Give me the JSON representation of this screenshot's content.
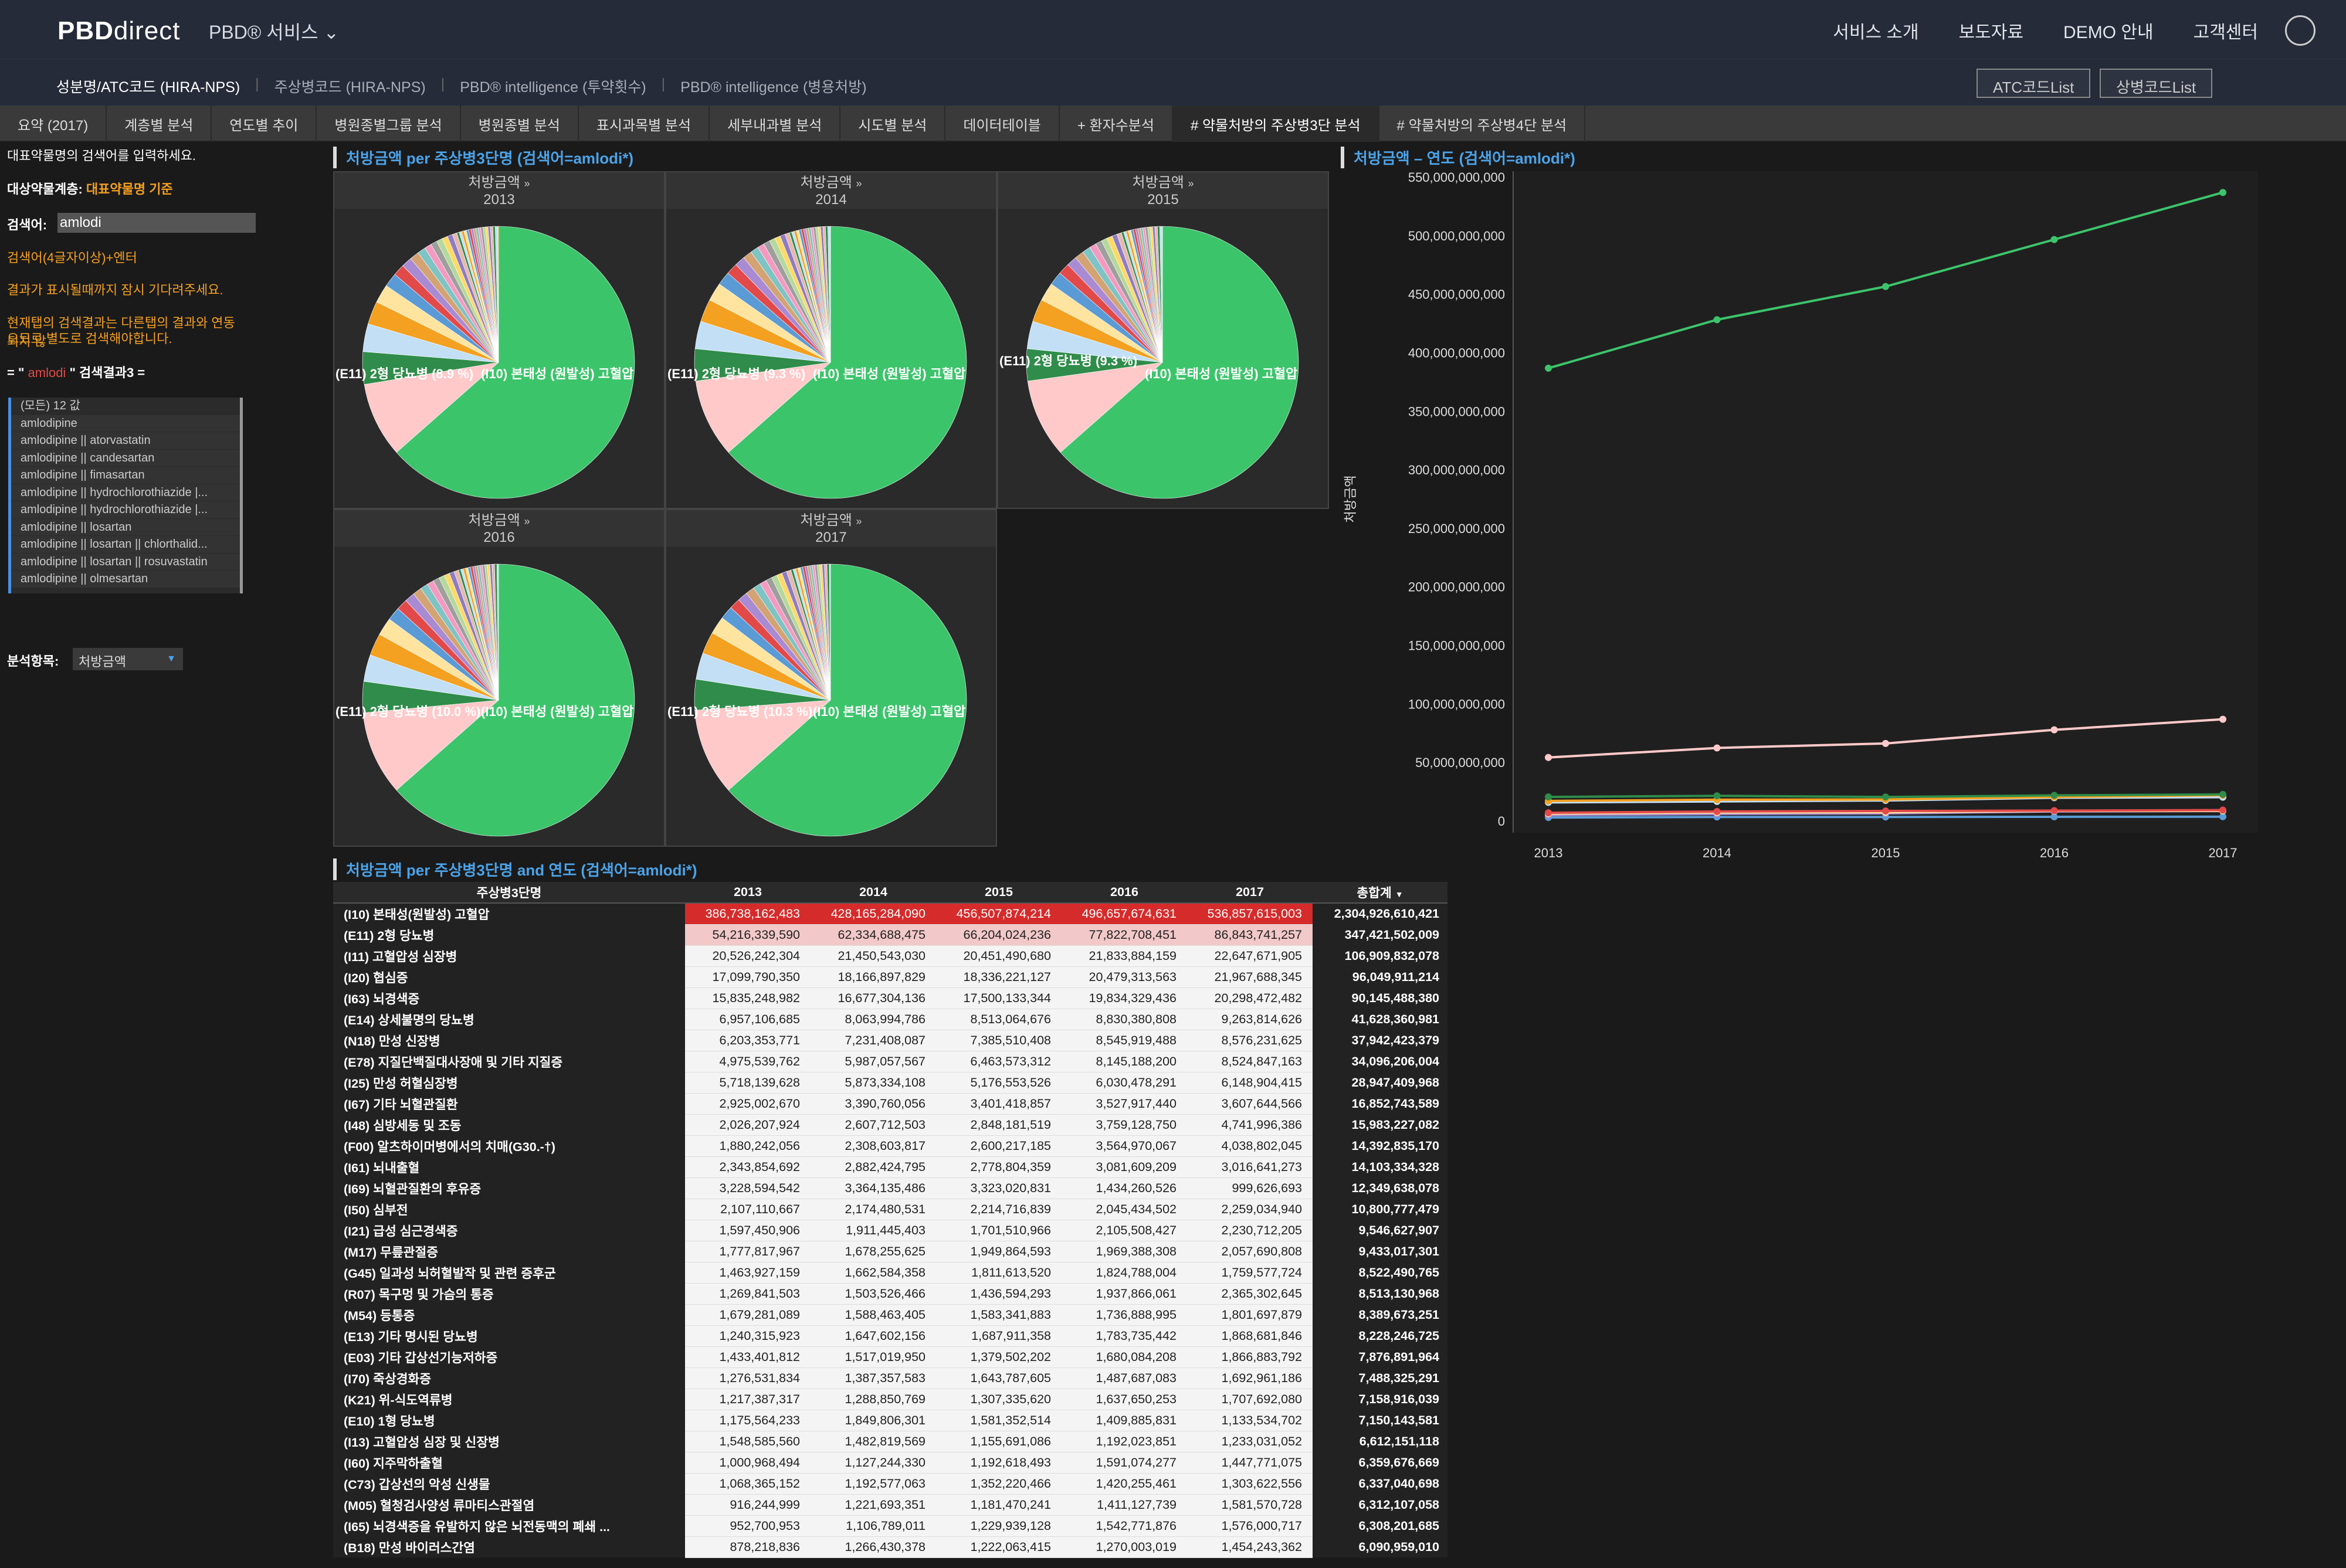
{
  "header": {
    "logo_main": "PBD",
    "logo_sub": "direct",
    "service_menu": "PBD® 서비스",
    "nav": [
      "서비스 소개",
      "보도자료",
      "DEMO 안내",
      "고객센터"
    ]
  },
  "subnav": {
    "items": [
      "성분명/ATC코드 (HIRA-NPS)",
      "주상병코드 (HIRA-NPS)",
      "PBD® intelligence (투약횟수)",
      "PBD® intelligence (병용처방)"
    ],
    "atc_button": "ATC코드List",
    "disease_button": "상병코드List"
  },
  "tabs": [
    "요약 (2017)",
    "계층별 분석",
    "연도별 추이",
    "병원종별그룹 분석",
    "병원종별 분석",
    "표시과목별 분석",
    "세부내과별 분석",
    "시도별 분석",
    "데이터테이블",
    "+ 환자수분석",
    "# 약물처방의 주상병3단 분석",
    "# 약물처방의 주상병4단 분석"
  ],
  "left": {
    "prompt": "대표약물명의 검색어를 입력하세요.",
    "layer_label": "대상약물계층:",
    "layer_value": "대표약물명 기준",
    "search_label": "검색어:",
    "search_value": "amlodi",
    "hint1": "검색어(4글자이상)+엔터",
    "hint2": "결과가 표시될때까지 잠시 기다려주세요.",
    "hint3a": "현재탭의 검색결과는 다른탭의 결과와 연동되지 않",
    "hint3b": "으므로 별도로 검색해야합니다.",
    "result_prefix": "= \"",
    "result_term": " amlodi ",
    "result_suffix": "\" 검색결과3 =",
    "list_all": "(모든) 12 값",
    "list": [
      "amlodipine",
      "amlodipine || atorvastatin",
      "amlodipine || candesartan",
      "amlodipine || fimasartan",
      "amlodipine || hydrochlorothiazide |...",
      "amlodipine || hydrochlorothiazide |...",
      "amlodipine || losartan",
      "amlodipine || losartan || chlorthalid...",
      "amlodipine || losartan || rosuvastatin",
      "amlodipine || olmesartan"
    ],
    "analysis_label": "분석항목:",
    "analysis_value": "처방금액"
  },
  "pies": {
    "title": "처방금액 per 주상병3단명 (검색어=amlodi*)",
    "head_label": "처방금액",
    "label_e11": "(E11) 2형 당뇨병",
    "label_i10": "(I10) 본태성 (원발성) 고혈압",
    "years": [
      "2013",
      "2014",
      "2015",
      "2016",
      "2017"
    ],
    "pct": [
      "(8.9 %)",
      "(9.3 %)",
      "(9.3 %)",
      "(10.0 %)",
      "(10.3 %)"
    ],
    "colors": {
      "main": "#3cc46b",
      "e11": "#ffc9c9",
      "others": [
        "#2f8c4a",
        "#c2dff5",
        "#f4a020",
        "#ffe4a0",
        "#5b9bd5",
        "#e24a4a",
        "#a98bd4",
        "#d4a373",
        "#7fc4c4",
        "#f49ac1",
        "#9e9e9e",
        "#b5d99c",
        "#ffd966",
        "#8e7cc3",
        "#e6b8af"
      ]
    }
  },
  "line_chart_title": "처방금액 – 연도 (검색어=amlodi*)",
  "table": {
    "title": "처방금액 per 주상병3단명 and 연도 (검색어=amlodi*)",
    "header_label": "주상병3단명",
    "header_total": "총합계",
    "years": [
      "2013",
      "2014",
      "2015",
      "2016",
      "2017"
    ],
    "rows": [
      {
        "name": "(I10) 본태성(원발성) 고혈압",
        "v": [
          "386,738,162,483",
          "428,165,284,090",
          "456,507,874,214",
          "496,657,674,631",
          "536,857,615,003"
        ],
        "t": "2,304,926,610,421"
      },
      {
        "name": "(E11) 2형 당뇨병",
        "v": [
          "54,216,339,590",
          "62,334,688,475",
          "66,204,024,236",
          "77,822,708,451",
          "86,843,741,257"
        ],
        "t": "347,421,502,009"
      },
      {
        "name": "(I11) 고혈압성 심장병",
        "v": [
          "20,526,242,304",
          "21,450,543,030",
          "20,451,490,680",
          "21,833,884,159",
          "22,647,671,905"
        ],
        "t": "106,909,832,078"
      },
      {
        "name": "(I20) 협심증",
        "v": [
          "17,099,790,350",
          "18,166,897,829",
          "18,336,221,127",
          "20,479,313,563",
          "21,967,688,345"
        ],
        "t": "96,049,911,214"
      },
      {
        "name": "(I63) 뇌경색증",
        "v": [
          "15,835,248,982",
          "16,677,304,136",
          "17,500,133,344",
          "19,834,329,436",
          "20,298,472,482"
        ],
        "t": "90,145,488,380"
      },
      {
        "name": "(E14) 상세불명의 당뇨병",
        "v": [
          "6,957,106,685",
          "8,063,994,786",
          "8,513,064,676",
          "8,830,380,808",
          "9,263,814,626"
        ],
        "t": "41,628,360,981"
      },
      {
        "name": "(N18) 만성 신장병",
        "v": [
          "6,203,353,771",
          "7,231,408,087",
          "7,385,510,408",
          "8,545,919,488",
          "8,576,231,625"
        ],
        "t": "37,942,423,379"
      },
      {
        "name": "(E78) 지질단백질대사장애 및 기타 지질증",
        "v": [
          "4,975,539,762",
          "5,987,057,567",
          "6,463,573,312",
          "8,145,188,200",
          "8,524,847,163"
        ],
        "t": "34,096,206,004"
      },
      {
        "name": "(I25) 만성 허혈심장병",
        "v": [
          "5,718,139,628",
          "5,873,334,108",
          "5,176,553,526",
          "6,030,478,291",
          "6,148,904,415"
        ],
        "t": "28,947,409,968"
      },
      {
        "name": "(I67) 기타 뇌혈관질환",
        "v": [
          "2,925,002,670",
          "3,390,760,056",
          "3,401,418,857",
          "3,527,917,440",
          "3,607,644,566"
        ],
        "t": "16,852,743,589"
      },
      {
        "name": "(I48) 심방세동 및 조동",
        "v": [
          "2,026,207,924",
          "2,607,712,503",
          "2,848,181,519",
          "3,759,128,750",
          "4,741,996,386"
        ],
        "t": "15,983,227,082"
      },
      {
        "name": "(F00) 알츠하이머병에서의 치매(G30.-†)",
        "v": [
          "1,880,242,056",
          "2,308,603,817",
          "2,600,217,185",
          "3,564,970,067",
          "4,038,802,045"
        ],
        "t": "14,392,835,170"
      },
      {
        "name": "(I61) 뇌내출혈",
        "v": [
          "2,343,854,692",
          "2,882,424,795",
          "2,778,804,359",
          "3,081,609,209",
          "3,016,641,273"
        ],
        "t": "14,103,334,328"
      },
      {
        "name": "(I69) 뇌혈관질환의 후유증",
        "v": [
          "3,228,594,542",
          "3,364,135,486",
          "3,323,020,831",
          "1,434,260,526",
          "999,626,693"
        ],
        "t": "12,349,638,078"
      },
      {
        "name": "(I50) 심부전",
        "v": [
          "2,107,110,667",
          "2,174,480,531",
          "2,214,716,839",
          "2,045,434,502",
          "2,259,034,940"
        ],
        "t": "10,800,777,479"
      },
      {
        "name": "(I21) 급성 심근경색증",
        "v": [
          "1,597,450,906",
          "1,911,445,403",
          "1,701,510,966",
          "2,105,508,427",
          "2,230,712,205"
        ],
        "t": "9,546,627,907"
      },
      {
        "name": "(M17) 무릎관절증",
        "v": [
          "1,777,817,967",
          "1,678,255,625",
          "1,949,864,593",
          "1,969,388,308",
          "2,057,690,808"
        ],
        "t": "9,433,017,301"
      },
      {
        "name": "(G45) 일과성 뇌허혈발작 및 관련 증후군",
        "v": [
          "1,463,927,159",
          "1,662,584,358",
          "1,811,613,520",
          "1,824,788,004",
          "1,759,577,724"
        ],
        "t": "8,522,490,765"
      },
      {
        "name": "(R07) 목구멍 및 가슴의 통증",
        "v": [
          "1,269,841,503",
          "1,503,526,466",
          "1,436,594,293",
          "1,937,866,061",
          "2,365,302,645"
        ],
        "t": "8,513,130,968"
      },
      {
        "name": "(M54) 등통증",
        "v": [
          "1,679,281,089",
          "1,588,463,405",
          "1,583,341,883",
          "1,736,888,995",
          "1,801,697,879"
        ],
        "t": "8,389,673,251"
      },
      {
        "name": "(E13) 기타 명시된 당뇨병",
        "v": [
          "1,240,315,923",
          "1,647,602,156",
          "1,687,911,358",
          "1,783,735,442",
          "1,868,681,846"
        ],
        "t": "8,228,246,725"
      },
      {
        "name": "(E03) 기타 갑상선기능저하증",
        "v": [
          "1,433,401,812",
          "1,517,019,950",
          "1,379,502,202",
          "1,680,084,208",
          "1,866,883,792"
        ],
        "t": "7,876,891,964"
      },
      {
        "name": "(I70) 죽상경화증",
        "v": [
          "1,276,531,834",
          "1,387,357,583",
          "1,643,787,605",
          "1,487,687,083",
          "1,692,961,186"
        ],
        "t": "7,488,325,291"
      },
      {
        "name": "(K21) 위-식도역류병",
        "v": [
          "1,217,387,317",
          "1,288,850,769",
          "1,307,335,620",
          "1,637,650,253",
          "1,707,692,080"
        ],
        "t": "7,158,916,039"
      },
      {
        "name": "(E10) 1형 당뇨병",
        "v": [
          "1,175,564,233",
          "1,849,806,301",
          "1,581,352,514",
          "1,409,885,831",
          "1,133,534,702"
        ],
        "t": "7,150,143,581"
      },
      {
        "name": "(I13) 고혈압성 심장 및 신장병",
        "v": [
          "1,548,585,560",
          "1,482,819,569",
          "1,155,691,086",
          "1,192,023,851",
          "1,233,031,052"
        ],
        "t": "6,612,151,118"
      },
      {
        "name": "(I60) 지주막하출혈",
        "v": [
          "1,000,968,494",
          "1,127,244,330",
          "1,192,618,493",
          "1,591,074,277",
          "1,447,771,075"
        ],
        "t": "6,359,676,669"
      },
      {
        "name": "(C73) 갑상선의 악성 신생물",
        "v": [
          "1,068,365,152",
          "1,192,577,063",
          "1,352,220,466",
          "1,420,255,461",
          "1,303,622,556"
        ],
        "t": "6,337,040,698"
      },
      {
        "name": "(M05) 혈청검사양성 류마티스관절염",
        "v": [
          "916,244,999",
          "1,221,693,351",
          "1,181,470,241",
          "1,411,127,739",
          "1,581,570,728"
        ],
        "t": "6,312,107,058"
      },
      {
        "name": "(I65) 뇌경색증을 유발하지 않은 뇌전동맥의 폐쇄 ...",
        "v": [
          "952,700,953",
          "1,106,789,011",
          "1,229,939,128",
          "1,542,771,876",
          "1,576,000,717"
        ],
        "t": "6,308,201,685"
      },
      {
        "name": "(B18) 만성 바이러스간염",
        "v": [
          "878,218,836",
          "1,266,430,378",
          "1,222,063,415",
          "1,270,003,019",
          "1,454,243,362"
        ],
        "t": "6,090,959,010"
      }
    ]
  },
  "chart_data": [
    {
      "type": "pie",
      "title": "처방금액 per 주상병3단명 (검색어=amlodi*)",
      "panels": [
        {
          "year": "2013",
          "slices": [
            {
              "label": "(I10) 본태성 (원발성) 고혈압"
            },
            {
              "label": "(E11) 2형 당뇨병",
              "percent": 8.9
            }
          ]
        },
        {
          "year": "2014",
          "slices": [
            {
              "label": "(I10) 본태성 (원발성) 고혈압"
            },
            {
              "label": "(E11) 2형 당뇨병",
              "percent": 9.3
            }
          ]
        },
        {
          "year": "2015",
          "slices": [
            {
              "label": "(I10) 본태성 (원발성) 고혈압"
            },
            {
              "label": "(E11) 2형 당뇨병",
              "percent": 9.3
            }
          ]
        },
        {
          "year": "2016",
          "slices": [
            {
              "label": "(I10) 본태성 (원발성) 고혈압"
            },
            {
              "label": "(E11) 2형 당뇨병",
              "percent": 10.0
            }
          ]
        },
        {
          "year": "2017",
          "slices": [
            {
              "label": "(I10) 본태성 (원발성) 고혈압"
            },
            {
              "label": "(E11) 2형 당뇨병",
              "percent": 10.3
            }
          ]
        }
      ]
    },
    {
      "type": "line",
      "title": "처방금액 – 연도 (검색어=amlodi*)",
      "ylabel": "처방금액",
      "x": [
        "2013",
        "2014",
        "2015",
        "2016",
        "2017"
      ],
      "ylim": [
        0,
        550000000000
      ],
      "yticks": [
        "0",
        "50,000,000,000",
        "100,000,000,000",
        "150,000,000,000",
        "200,000,000,000",
        "250,000,000,000",
        "300,000,000,000",
        "350,000,000,000",
        "400,000,000,000",
        "450,000,000,000",
        "500,000,000,000",
        "550,000,000,000"
      ],
      "series": [
        {
          "values": [
            386738162483,
            428165284090,
            456507874214,
            496657674631,
            536857615003
          ],
          "color": "#3cc46b"
        },
        {
          "values": [
            54216339590,
            62334688475,
            66204024236,
            77822708451,
            86843741257
          ],
          "color": "#ffc9c9"
        },
        {
          "values": [
            20526242304,
            21450543030,
            20451490680,
            21833884159,
            22647671905
          ],
          "color": "#2f8c4a"
        },
        {
          "values": [
            17099790350,
            18166897829,
            18336221127,
            20479313563,
            21967688345
          ],
          "color": "#f4a020"
        },
        {
          "values": [
            15835248982,
            16677304136,
            17500133344,
            19834329436,
            20298472482
          ],
          "color": "#c2dff5"
        },
        {
          "values": [
            6957106685,
            8063994786,
            8513064676,
            8830380808,
            9263814626
          ],
          "color": "#e24a4a"
        },
        {
          "values": [
            6203353771,
            7231408087,
            7385510408,
            8545919488,
            8576231625
          ],
          "color": "#ffe4a0"
        },
        {
          "values": [
            4975539762,
            5987057567,
            6463573312,
            8145188200,
            8524847163
          ],
          "color": "#a98bd4"
        },
        {
          "values": [
            2925002670,
            3390760056,
            3401418857,
            3527917440,
            3607644566
          ],
          "color": "#5b9bd5"
        }
      ]
    }
  ]
}
